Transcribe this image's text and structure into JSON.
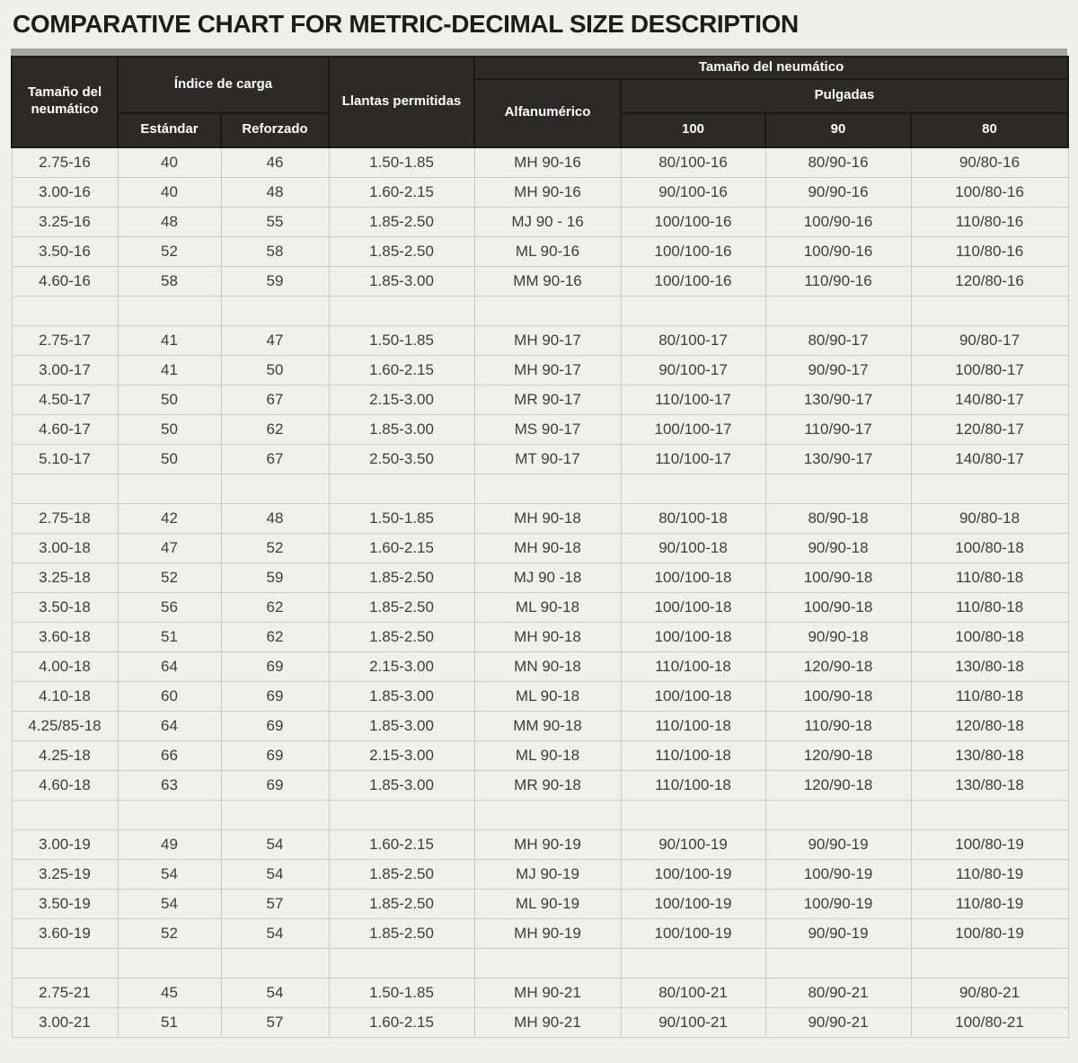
{
  "page": {
    "title": "COMPARATIVE CHART FOR METRIC-DECIMAL SIZE DESCRIPTION"
  },
  "colors": {
    "page_bg": "#efefed",
    "header_bg": "#2b2a28",
    "header_text": "#ffffff",
    "top_bar": "#a6a6a6",
    "cell_border": "#cbcbc9",
    "cell_text": "#3d3d3d"
  },
  "table": {
    "header": {
      "col_tire_size": "Tamaño del neumático",
      "col_load_index": "Índice de carga",
      "col_load_standard": "Estándar",
      "col_load_reinforced": "Reforzado",
      "col_rims": "Llantas permitidas",
      "col_tire_size_right": "Tamaño del neumático",
      "col_alphanumeric": "Alfanumérico",
      "col_inches": "Pulgadas",
      "col_100": "100",
      "col_90": "90",
      "col_80": "80"
    },
    "sections": [
      {
        "rows": [
          [
            "2.75-16",
            "40",
            "46",
            "1.50-1.85",
            "MH 90-16",
            "80/100-16",
            "80/90-16",
            "90/80-16"
          ],
          [
            "3.00-16",
            "40",
            "48",
            "1.60-2.15",
            "MH 90-16",
            "90/100-16",
            "90/90-16",
            "100/80-16"
          ],
          [
            "3.25-16",
            "48",
            "55",
            "1.85-2.50",
            "MJ 90 - 16",
            "100/100-16",
            "100/90-16",
            "110/80-16"
          ],
          [
            "3.50-16",
            "52",
            "58",
            "1.85-2.50",
            "ML 90-16",
            "100/100-16",
            "100/90-16",
            "110/80-16"
          ],
          [
            "4.60-16",
            "58",
            "59",
            "1.85-3.00",
            "MM 90-16",
            "100/100-16",
            "110/90-16",
            "120/80-16"
          ]
        ]
      },
      {
        "rows": [
          [
            "2.75-17",
            "41",
            "47",
            "1.50-1.85",
            "MH 90-17",
            "80/100-17",
            "80/90-17",
            "90/80-17"
          ],
          [
            "3.00-17",
            "41",
            "50",
            "1.60-2.15",
            "MH 90-17",
            "90/100-17",
            "90/90-17",
            "100/80-17"
          ],
          [
            "4.50-17",
            "50",
            "67",
            "2.15-3.00",
            "MR 90-17",
            "110/100-17",
            "130/90-17",
            "140/80-17"
          ],
          [
            "4.60-17",
            "50",
            "62",
            "1.85-3.00",
            "MS 90-17",
            "100/100-17",
            "110/90-17",
            "120/80-17"
          ],
          [
            "5.10-17",
            "50",
            "67",
            "2.50-3.50",
            "MT 90-17",
            "110/100-17",
            "130/90-17",
            "140/80-17"
          ]
        ]
      },
      {
        "rows": [
          [
            "2.75-18",
            "42",
            "48",
            "1.50-1.85",
            "MH 90-18",
            "80/100-18",
            "80/90-18",
            "90/80-18"
          ],
          [
            "3.00-18",
            "47",
            "52",
            "1.60-2.15",
            "MH 90-18",
            "90/100-18",
            "90/90-18",
            "100/80-18"
          ],
          [
            "3.25-18",
            "52",
            "59",
            "1.85-2.50",
            "MJ 90 -18",
            "100/100-18",
            "100/90-18",
            "110/80-18"
          ],
          [
            "3.50-18",
            "56",
            "62",
            "1.85-2.50",
            "ML 90-18",
            "100/100-18",
            "100/90-18",
            "110/80-18"
          ],
          [
            "3.60-18",
            "51",
            "62",
            "1.85-2.50",
            "MH 90-18",
            "100/100-18",
            "90/90-18",
            "100/80-18"
          ],
          [
            "4.00-18",
            "64",
            "69",
            "2.15-3.00",
            "MN 90-18",
            "110/100-18",
            "120/90-18",
            "130/80-18"
          ],
          [
            "4.10-18",
            "60",
            "69",
            "1.85-3.00",
            "ML 90-18",
            "100/100-18",
            "100/90-18",
            "110/80-18"
          ],
          [
            "4.25/85-18",
            "64",
            "69",
            "1.85-3.00",
            "MM 90-18",
            "110/100-18",
            "110/90-18",
            "120/80-18"
          ],
          [
            "4.25-18",
            "66",
            "69",
            "2.15-3.00",
            "ML 90-18",
            "110/100-18",
            "120/90-18",
            "130/80-18"
          ],
          [
            "4.60-18",
            "63",
            "69",
            "1.85-3.00",
            "MR 90-18",
            "110/100-18",
            "120/90-18",
            "130/80-18"
          ]
        ]
      },
      {
        "rows": [
          [
            "3.00-19",
            "49",
            "54",
            "1.60-2.15",
            "MH 90-19",
            "90/100-19",
            "90/90-19",
            "100/80-19"
          ],
          [
            "3.25-19",
            "54",
            "54",
            "1.85-2.50",
            "MJ 90-19",
            "100/100-19",
            "100/90-19",
            "110/80-19"
          ],
          [
            "3.50-19",
            "54",
            "57",
            "1.85-2.50",
            "ML 90-19",
            "100/100-19",
            "100/90-19",
            "110/80-19"
          ],
          [
            "3.60-19",
            "52",
            "54",
            "1.85-2.50",
            "MH 90-19",
            "100/100-19",
            "90/90-19",
            "100/80-19"
          ]
        ]
      },
      {
        "rows": [
          [
            "2.75-21",
            "45",
            "54",
            "1.50-1.85",
            "MH 90-21",
            "80/100-21",
            "80/90-21",
            "90/80-21"
          ],
          [
            "3.00-21",
            "51",
            "57",
            "1.60-2.15",
            "MH 90-21",
            "90/100-21",
            "90/90-21",
            "100/80-21"
          ]
        ]
      }
    ]
  }
}
